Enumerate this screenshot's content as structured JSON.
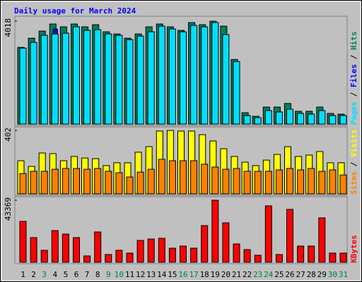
{
  "chart_data": [
    {
      "type": "bar",
      "title": "Daily usage for March 2024",
      "separator": "/",
      "ylim": [
        0,
        4018
      ],
      "yticks": [
        4018
      ],
      "series": [
        {
          "name": "Hits",
          "color": "#00805c",
          "values": [
            2993,
            3353,
            3630,
            3907,
            3796,
            3907,
            3796,
            3880,
            3602,
            3519,
            3353,
            3519,
            3796,
            3907,
            3796,
            3658,
            3963,
            3880,
            4018,
            3824,
            2522,
            443,
            305,
            665,
            665,
            804,
            499,
            499,
            665,
            416,
            388
          ]
        },
        {
          "name": "Files",
          "color": "#00e0ff",
          "values": [
            2965,
            3187,
            3464,
            3519,
            3547,
            3796,
            3658,
            3686,
            3519,
            3464,
            3298,
            3436,
            3602,
            3824,
            3713,
            3602,
            3852,
            3796,
            3963,
            3491,
            2439,
            333,
            249,
            526,
            471,
            582,
            416,
            388,
            526,
            333,
            333
          ]
        },
        {
          "name": "Pages",
          "color": "#0000ff",
          "values": [
            2965,
            3187,
            3464,
            3713,
            3547,
            3796,
            3658,
            3686,
            3519,
            3464,
            3298,
            3436,
            3602,
            3824,
            3713,
            3602,
            3852,
            3796,
            3963,
            3491,
            2439,
            333,
            249,
            526,
            471,
            582,
            416,
            388,
            526,
            333,
            333
          ]
        }
      ]
    },
    {
      "type": "bar",
      "separator": "/",
      "ylim": [
        0,
        402
      ],
      "yticks": [
        402
      ],
      "series": [
        {
          "name": "Visits",
          "color": "#ffff00",
          "values": [
            210,
            174,
            259,
            255,
            210,
            237,
            227,
            223,
            179,
            197,
            197,
            264,
            299,
            398,
            402,
            398,
            398,
            375,
            335,
            286,
            237,
            201,
            179,
            214,
            250,
            299,
            237,
            246,
            268,
            197,
            197
          ]
        },
        {
          "name": "Sites",
          "color": "#ff8000",
          "values": [
            129,
            143,
            143,
            156,
            161,
            161,
            156,
            161,
            143,
            134,
            107,
            138,
            156,
            219,
            210,
            210,
            210,
            188,
            170,
            156,
            161,
            143,
            143,
            143,
            152,
            161,
            152,
            161,
            143,
            152,
            120
          ]
        }
      ]
    },
    {
      "type": "bar",
      "ylim": [
        0,
        43369
      ],
      "yticks": [
        43369
      ],
      "categories": [
        "1",
        "2",
        "3",
        "4",
        "5",
        "6",
        "7",
        "8",
        "9",
        "10",
        "11",
        "12",
        "13",
        "14",
        "15",
        "16",
        "17",
        "18",
        "19",
        "20",
        "21",
        "22",
        "23",
        "24",
        "25",
        "26",
        "27",
        "28",
        "29",
        "30",
        "31"
      ],
      "category_colors": [
        "#000000",
        "#000000",
        "#008040",
        "#000000",
        "#000000",
        "#000000",
        "#000000",
        "#000000",
        "#008040",
        "#008040",
        "#000000",
        "#000000",
        "#000000",
        "#000000",
        "#000000",
        "#008040",
        "#008040",
        "#000000",
        "#000000",
        "#000000",
        "#000000",
        "#000000",
        "#008040",
        "#008040",
        "#000000",
        "#000000",
        "#000000",
        "#000000",
        "#000000",
        "#008040",
        "#008040"
      ],
      "series": [
        {
          "name": "KBytes",
          "color": "#ff0000",
          "values": [
            28584,
            17249,
            8378,
            22177,
            19713,
            17249,
            4435,
            21191,
            5421,
            8378,
            6407,
            15278,
            16263,
            16756,
            9857,
            11335,
            9857,
            25627,
            43369,
            27598,
            12814,
            8871,
            4928,
            39426,
            5421,
            36962,
            11335,
            11335,
            31048,
            6407,
            6407
          ]
        }
      ]
    }
  ]
}
